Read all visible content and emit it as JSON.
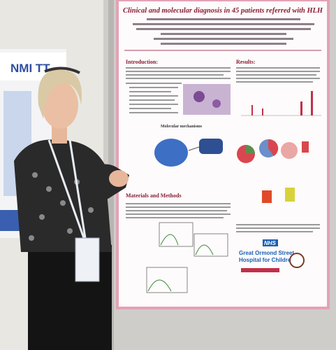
{
  "poster": {
    "title": "Clinical and molecular diagnosis in 45 patients referred with HLH",
    "sections": {
      "introduction": "Introduction:",
      "results": "Results:",
      "methods": "Materials and Methods",
      "mechanisms": "Molecular mechanisms"
    },
    "logo": {
      "nhs": "NHS",
      "line1": "Great Ormond Street",
      "line2": "Hospital for Children"
    }
  },
  "side_sign": {
    "text": "NMI TT"
  }
}
